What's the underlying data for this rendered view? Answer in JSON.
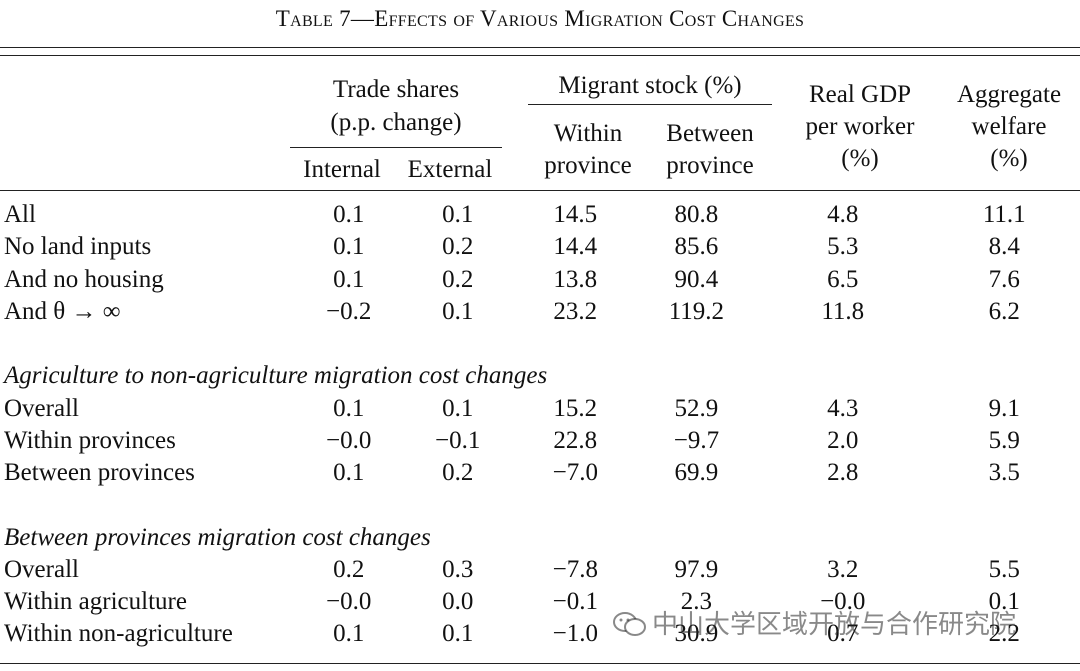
{
  "title": "Table 7—Effects of Various Migration Cost Changes",
  "headers": {
    "trade_shares": "Trade shares",
    "trade_shares_unit": "(p.p. change)",
    "internal": "Internal",
    "external": "External",
    "migrant_stock": "Migrant stock (%)",
    "within": "Within",
    "within_2": "province",
    "between": "Between",
    "between_2": "province",
    "real_gdp": "Real GDP",
    "real_gdp_2": "per worker",
    "real_gdp_3": "(%)",
    "welfare": "Aggregate",
    "welfare_2": "welfare",
    "welfare_3": "(%)"
  },
  "rows": [
    {
      "label": "All",
      "values": [
        "0.1",
        "0.1",
        "14.5",
        "80.8",
        "4.8",
        "11.1"
      ]
    },
    {
      "label": "No land inputs",
      "values": [
        "0.1",
        "0.2",
        "14.4",
        "85.6",
        "5.3",
        "8.4"
      ]
    },
    {
      "label": "And no housing",
      "values": [
        "0.1",
        "0.2",
        "13.8",
        "90.4",
        "6.5",
        "7.6"
      ]
    },
    {
      "label": "And θ → ∞",
      "values": [
        "−0.2",
        "0.1",
        "23.2",
        "119.2",
        "11.8",
        "6.2"
      ]
    }
  ],
  "section2": {
    "title": "Agriculture to non-agriculture migration cost changes",
    "rows": [
      {
        "label": "Overall",
        "values": [
          "0.1",
          "0.1",
          "15.2",
          "52.9",
          "4.3",
          "9.1"
        ]
      },
      {
        "label": "Within provinces",
        "values": [
          "−0.0",
          "−0.1",
          "22.8",
          "−9.7",
          "2.0",
          "5.9"
        ]
      },
      {
        "label": "Between provinces",
        "values": [
          "0.1",
          "0.2",
          "−7.0",
          "69.9",
          "2.8",
          "3.5"
        ]
      }
    ]
  },
  "section3": {
    "title": "Between provinces migration cost changes",
    "rows": [
      {
        "label": "Overall",
        "values": [
          "0.2",
          "0.3",
          "−7.8",
          "97.9",
          "3.2",
          "5.5"
        ]
      },
      {
        "label": "Within agriculture",
        "values": [
          "−0.0",
          "0.0",
          "−0.1",
          "2.3",
          "−0.0",
          "0.1"
        ]
      },
      {
        "label": "Within non-agriculture",
        "values": [
          "0.1",
          "0.1",
          "−1.0",
          "30.9",
          "0.7",
          "2.2"
        ]
      }
    ]
  },
  "watermark": "中山大学区域开放与合作研究院"
}
